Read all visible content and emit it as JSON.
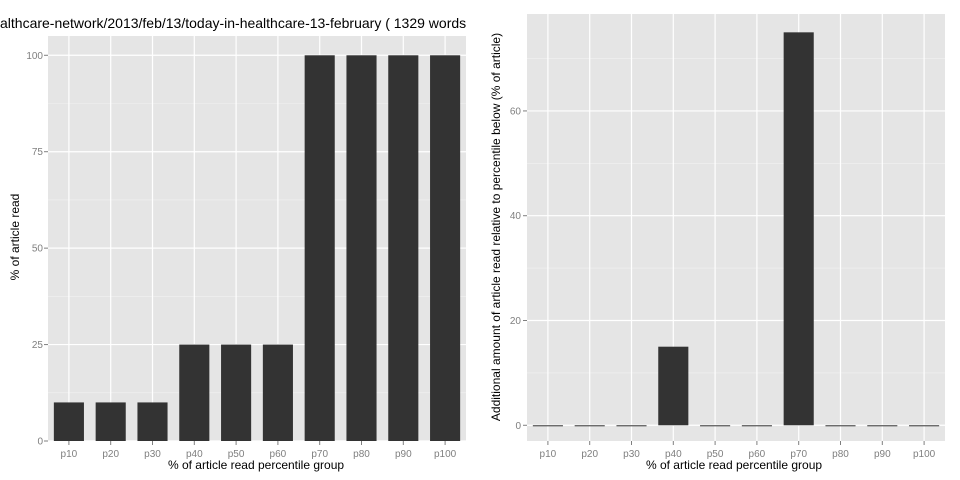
{
  "chart_data": [
    {
      "type": "bar",
      "title": "althcare-network/2013/feb/13/today-in-healthcare-13-february ( 1329 words",
      "xlabel": "% of article read percentile group",
      "ylabel": "% of article read",
      "categories": [
        "p10",
        "p20",
        "p30",
        "p40",
        "p50",
        "p60",
        "p70",
        "p80",
        "p90",
        "p100"
      ],
      "values": [
        10,
        10,
        10,
        25,
        25,
        25,
        100,
        100,
        100,
        100
      ],
      "ylim": [
        0,
        105
      ],
      "yticks": [
        "0",
        "25",
        "50",
        "75",
        "100"
      ],
      "grid": true,
      "colors": {
        "bar": "#333333",
        "panel": "#e5e5e5",
        "grid": "#ffffff"
      }
    },
    {
      "type": "bar",
      "title": "",
      "xlabel": "% of article read percentile group",
      "ylabel": "Additional amount of article read relative to percentile below (% of article)",
      "categories": [
        "p10",
        "p20",
        "p30",
        "p40",
        "p50",
        "p60",
        "p70",
        "p80",
        "p90",
        "p100"
      ],
      "values": [
        0,
        0,
        0,
        15,
        0,
        0,
        75,
        0,
        0,
        0
      ],
      "ylim": [
        -3,
        78.5
      ],
      "yticks": [
        "0",
        "20",
        "40",
        "60"
      ],
      "grid": true,
      "colors": {
        "bar": "#333333",
        "panel": "#e5e5e5",
        "grid": "#ffffff"
      }
    }
  ]
}
